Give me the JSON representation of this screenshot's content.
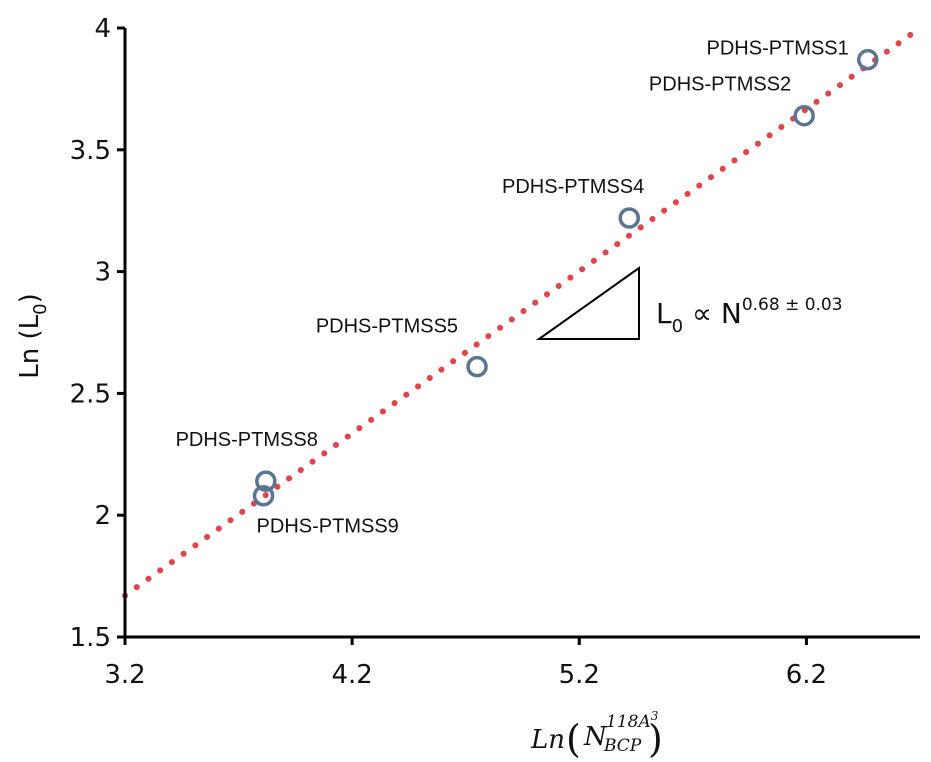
{
  "chart_data": {
    "type": "scatter",
    "ylabel": {
      "main": "Ln (L",
      "sub": "0",
      "close": ")"
    },
    "xlabel": {
      "prefix": "Ln",
      "base": "N",
      "superscript": "118A",
      "superscript_exp": "3",
      "subscript": "BCP"
    },
    "xlim": [
      3.2,
      6.7
    ],
    "ylim": [
      1.5,
      4.0
    ],
    "xticks": [
      "3.2",
      "4.2",
      "5.2",
      "6.2"
    ],
    "yticks": [
      "1.5",
      "2",
      "2.5",
      "3",
      "3.5",
      "4"
    ],
    "points": [
      {
        "label": "PDHS-PTMSS1",
        "x": 6.47,
        "y": 3.87
      },
      {
        "label": "PDHS-PTMSS2",
        "x": 6.19,
        "y": 3.64
      },
      {
        "label": "PDHS-PTMSS4",
        "x": 5.42,
        "y": 3.22
      },
      {
        "label": "PDHS-PTMSS5",
        "x": 4.75,
        "y": 2.61
      },
      {
        "label": "PDHS-PTMSS8",
        "x": 3.82,
        "y": 2.14
      },
      {
        "label": "PDHS-PTMSS9",
        "x": 3.81,
        "y": 2.08
      }
    ],
    "fit_line": {
      "x": [
        3.2,
        6.7
      ],
      "y": [
        1.67,
        4.0
      ],
      "style": "dotted",
      "color": "#e0444c"
    },
    "annotation": {
      "text_main": "L",
      "text_sub": "0",
      "text_rel": " ∝ N",
      "text_exp": "0.68 ± 0.03"
    },
    "marker_color": "#5a7592",
    "grid": false
  }
}
